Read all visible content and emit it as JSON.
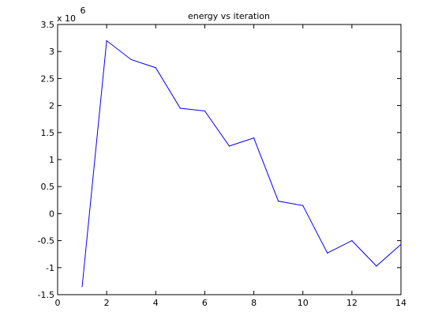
{
  "chart_data": {
    "type": "line",
    "title": "energy vs iteration",
    "xlabel": "",
    "ylabel": "",
    "y_multiplier": {
      "base": "x 10",
      "exponent": "6"
    },
    "xlim": [
      0,
      14
    ],
    "ylim": [
      -1.5,
      3.5
    ],
    "x_ticks": [
      0,
      2,
      4,
      6,
      8,
      10,
      12,
      14
    ],
    "x_tick_labels": [
      "0",
      "2",
      "4",
      "6",
      "8",
      "10",
      "12",
      "14"
    ],
    "y_ticks": [
      -1.5,
      -1,
      -0.5,
      0,
      0.5,
      1,
      1.5,
      2,
      2.5,
      3,
      3.5
    ],
    "y_tick_labels": [
      "-1.5",
      "-1",
      "-0.5",
      "0",
      "0.5",
      "1",
      "1.5",
      "2",
      "2.5",
      "3",
      "3.5"
    ],
    "grid": false,
    "series": [
      {
        "color": "#0000ff",
        "x": [
          1,
          2,
          3,
          4,
          5,
          6,
          7,
          8,
          9,
          10,
          11,
          12,
          13,
          14
        ],
        "y": [
          -1.35,
          3.2,
          2.85,
          2.7,
          1.95,
          1.9,
          1.25,
          1.4,
          0.23,
          0.15,
          -0.73,
          -0.5,
          -0.97,
          -0.57
        ]
      }
    ]
  }
}
